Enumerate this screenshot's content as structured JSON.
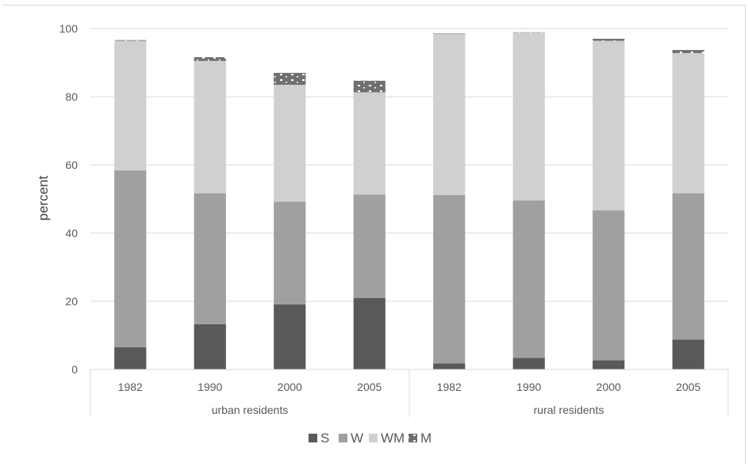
{
  "chart_data": {
    "type": "bar",
    "stacked": true,
    "title": "",
    "xlabel": "",
    "ylabel": "percent",
    "ylim": [
      0,
      100
    ],
    "yticks": [
      0,
      20,
      40,
      60,
      80,
      100
    ],
    "grid": true,
    "legend_position": "bottom",
    "groups": [
      {
        "label": "urban residents",
        "categories": [
          "1982",
          "1990",
          "2000",
          "2005"
        ]
      },
      {
        "label": "rural residents",
        "categories": [
          "1982",
          "1990",
          "2000",
          "2005"
        ]
      }
    ],
    "series": [
      {
        "name": "S",
        "color": "#595959",
        "values": [
          6.5,
          13.3,
          19.1,
          21.0,
          1.8,
          3.4,
          2.7,
          8.8
        ]
      },
      {
        "name": "W",
        "color": "#a0a0a0",
        "values": [
          51.9,
          38.4,
          30.1,
          30.3,
          49.4,
          46.2,
          44.0,
          42.9
        ]
      },
      {
        "name": "WM",
        "color": "#d0d0d0",
        "values": [
          38.0,
          38.8,
          34.3,
          30.0,
          47.3,
          49.2,
          49.7,
          41.1
        ]
      },
      {
        "name": "M",
        "color": "#707070",
        "pattern": "dotted",
        "values": [
          0.2,
          1.1,
          3.5,
          3.4,
          0.1,
          0.1,
          0.6,
          0.9
        ]
      }
    ]
  }
}
